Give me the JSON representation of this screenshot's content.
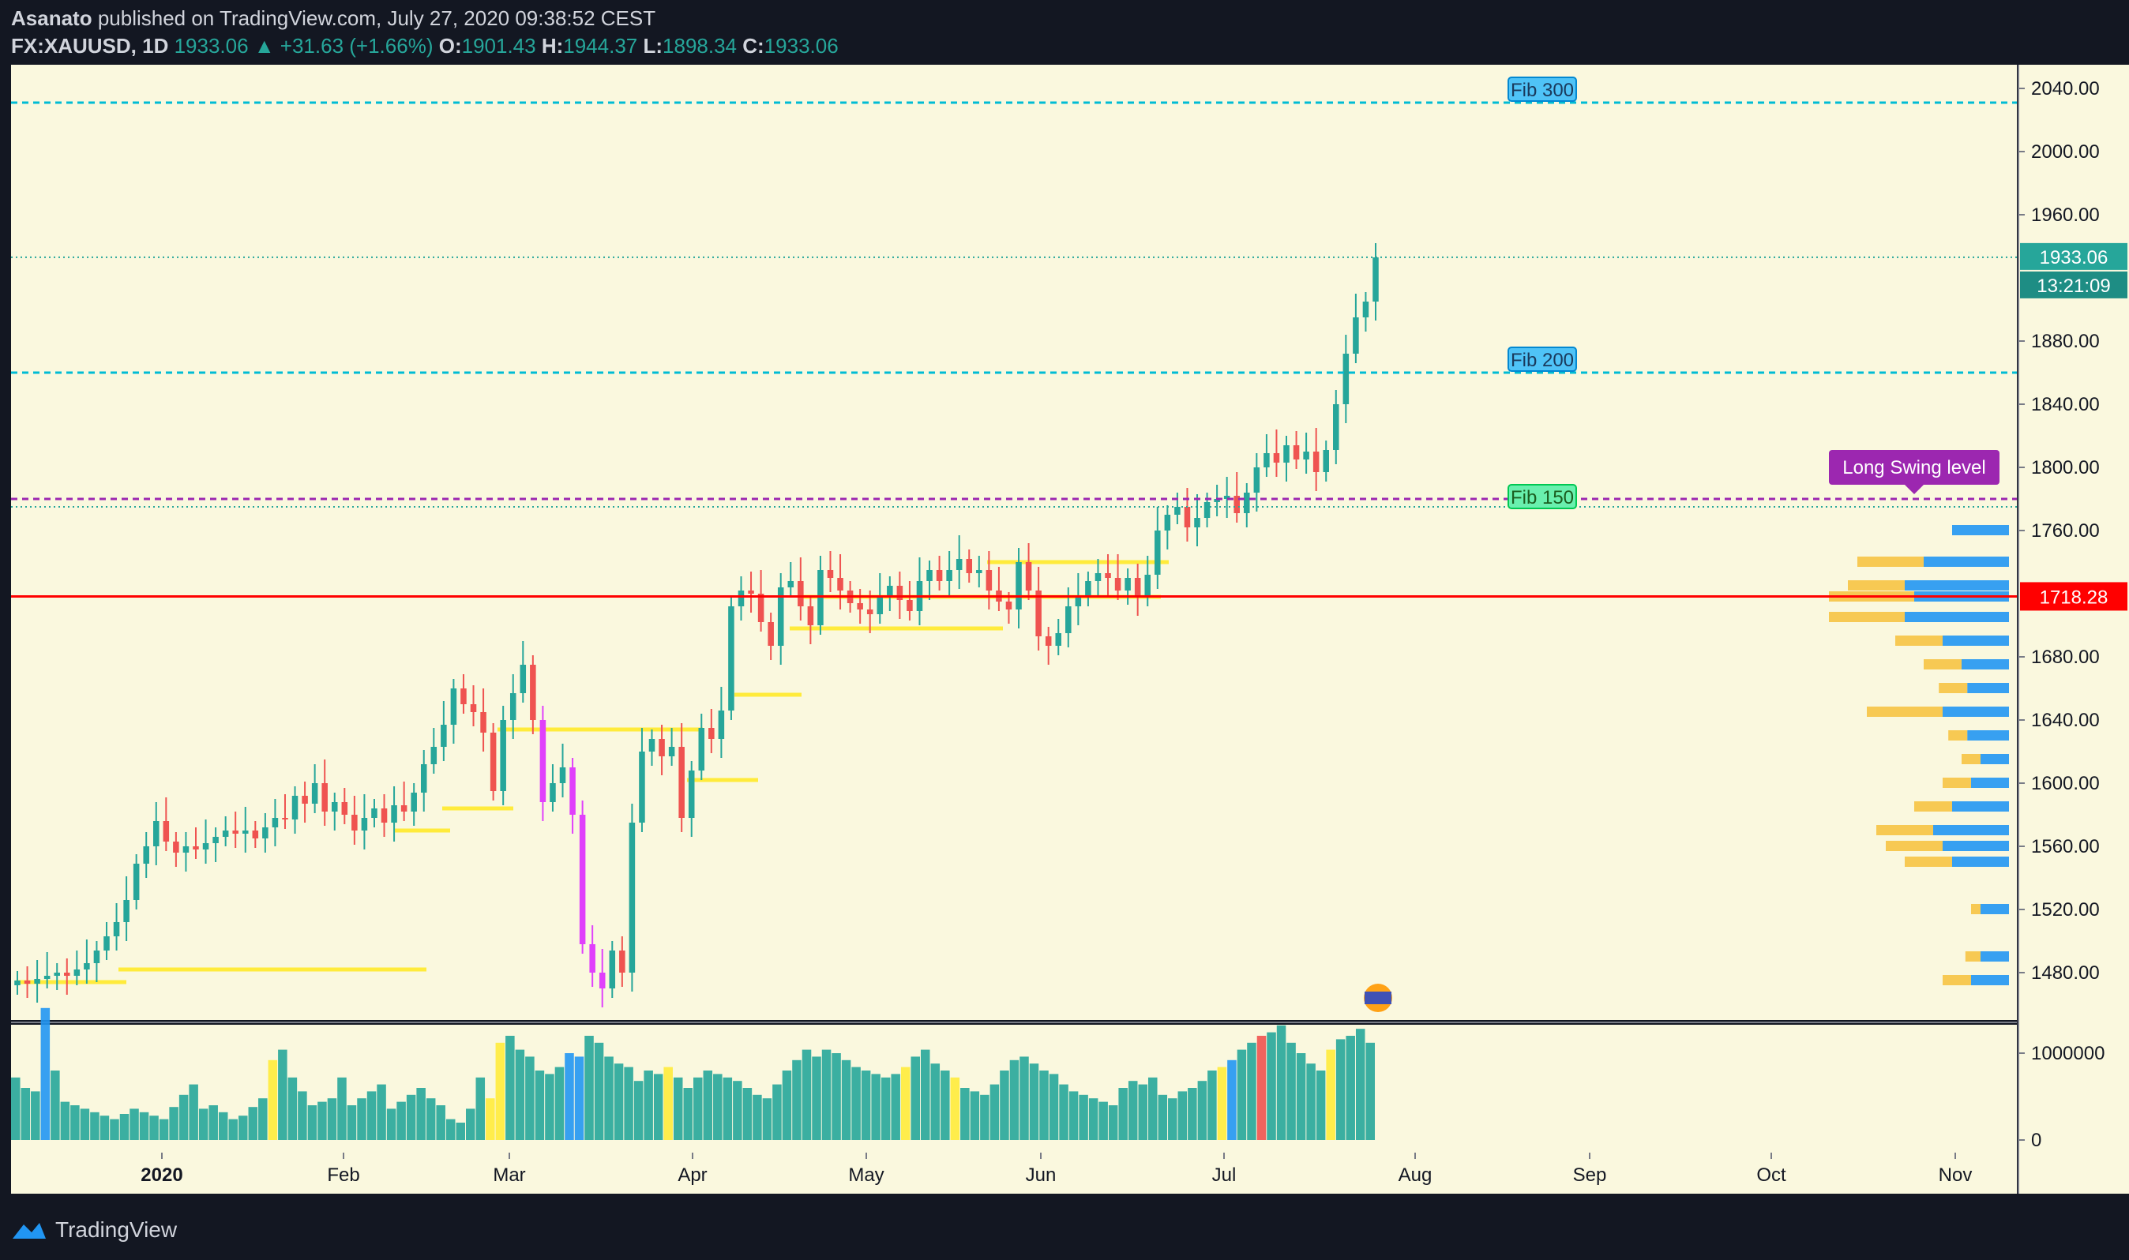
{
  "header": {
    "author": "Asanato",
    "published_text": "published on TradingView.com, July 27, 2020 09:38:52 CEST",
    "symbol": "FX:XAUUSD, 1D",
    "last": "1933.06",
    "change": "+31.63 (+1.66%)",
    "open_label": "O:",
    "open": "1901.43",
    "high_label": "H:",
    "high": "1944.37",
    "low_label": "L:",
    "low": "1898.34",
    "close_label": "C:",
    "close": "1933.06"
  },
  "footer": {
    "brand": "TradingView"
  },
  "colors": {
    "background": "#faf8de",
    "up": "#26a69a",
    "down": "#ef5350",
    "pink": "#e040fb",
    "fib_line": "#00bcd4",
    "swing_line": "#9c27b0",
    "support_red": "#ff0000",
    "yellow_level": "#ffeb3b",
    "volume_up": "#26a69a",
    "volume_highlight_yellow": "#ffeb3b",
    "volume_highlight_blue": "#2196f3",
    "volume_highlight_red": "#ef5350",
    "vp_blue": "#2196f3",
    "vp_yellow": "#f6c344"
  },
  "chart_data": {
    "type": "candlestick",
    "symbol": "FX:XAUUSD",
    "interval": "1D",
    "ylim": [
      1450,
      2055
    ],
    "price_ticks": [
      "2040.00",
      "2000.00",
      "1960.00",
      "1880.00",
      "1840.00",
      "1800.00",
      "1760.00",
      "1680.00",
      "1640.00",
      "1600.00",
      "1560.00",
      "1520.00",
      "1480.00"
    ],
    "price_tick_values": [
      2040,
      2000,
      1960,
      1880,
      1840,
      1800,
      1760,
      1680,
      1640,
      1600,
      1560,
      1520,
      1480
    ],
    "time_ticks": [
      "2020",
      "Feb",
      "Mar",
      "Apr",
      "May",
      "Jun",
      "Jul",
      "Aug",
      "Sep",
      "Oct",
      "Nov"
    ],
    "last_price_label": "1933.06",
    "countdown_label": "13:21:09",
    "support_label": "1718.28",
    "support_value": 1718.28,
    "levels": [
      {
        "label": "Fib 300",
        "value": 2031
      },
      {
        "label": "Fib 200",
        "value": 1860
      },
      {
        "label": "Fib 150",
        "value": 1775
      },
      {
        "label": "Long Swing level",
        "value": 1780
      }
    ],
    "candles_close": [
      1475,
      1473,
      1476,
      1478,
      1480,
      1478,
      1482,
      1486,
      1494,
      1503,
      1512,
      1526,
      1549,
      1560,
      1576,
      1563,
      1556,
      1560,
      1558,
      1562,
      1566,
      1570,
      1568,
      1570,
      1565,
      1572,
      1578,
      1577,
      1592,
      1587,
      1600,
      1582,
      1588,
      1580,
      1570,
      1578,
      1584,
      1575,
      1586,
      1582,
      1594,
      1612,
      1623,
      1637,
      1660,
      1650,
      1645,
      1632,
      1595,
      1640,
      1657,
      1675,
      1640,
      1588,
      1600,
      1610,
      1580,
      1498,
      1480,
      1470,
      1494,
      1480,
      1575,
      1620,
      1628,
      1617,
      1623,
      1578,
      1608,
      1635,
      1628,
      1646,
      1712,
      1722,
      1720,
      1702,
      1687,
      1724,
      1728,
      1712,
      1700,
      1735,
      1730,
      1722,
      1714,
      1710,
      1707,
      1718,
      1725,
      1716,
      1709,
      1728,
      1735,
      1728,
      1735,
      1742,
      1733,
      1735,
      1722,
      1715,
      1710,
      1740,
      1722,
      1693,
      1687,
      1695,
      1712,
      1718,
      1728,
      1733,
      1730,
      1722,
      1730,
      1718,
      1732,
      1760,
      1770,
      1775,
      1762,
      1768,
      1778,
      1780,
      1782,
      1771,
      1784,
      1800,
      1809,
      1803,
      1814,
      1805,
      1810,
      1797,
      1811,
      1840,
      1872,
      1895,
      1905,
      1933
    ],
    "volume_ticks": [
      "1000000",
      "0"
    ],
    "volume_tick_values": [
      1000000,
      0
    ],
    "volume_max": 1200000,
    "volume": [
      180,
      150,
      140,
      380,
      200,
      110,
      100,
      90,
      80,
      70,
      60,
      75,
      90,
      80,
      70,
      60,
      95,
      130,
      160,
      90,
      100,
      80,
      60,
      70,
      95,
      120,
      230,
      260,
      180,
      140,
      100,
      110,
      120,
      180,
      100,
      120,
      140,
      160,
      90,
      110,
      130,
      150,
      120,
      100,
      60,
      50,
      90,
      180,
      120,
      280,
      300,
      260,
      240,
      200,
      190,
      210,
      250,
      240,
      300,
      280,
      240,
      220,
      210,
      170,
      200,
      190,
      210,
      180,
      150,
      180,
      200,
      190,
      180,
      170,
      150,
      130,
      120,
      160,
      200,
      230,
      260,
      240,
      260,
      250,
      230,
      210,
      200,
      190,
      180,
      190,
      210,
      240,
      260,
      220,
      200,
      180,
      150,
      140,
      130,
      160,
      200,
      230,
      240,
      220,
      200,
      190,
      160,
      140,
      130,
      120,
      110,
      100,
      150,
      170,
      160,
      180,
      130,
      120,
      140,
      150,
      170,
      200,
      210,
      230,
      260,
      280,
      300,
      310,
      330,
      280,
      250,
      220,
      200,
      260,
      290,
      300,
      320,
      280
    ],
    "volume_colors_note": "",
    "volume_profile": [
      {
        "price": 1760,
        "blue": 0.3,
        "yellow": 0
      },
      {
        "price": 1740,
        "blue": 0.45,
        "yellow": 0.35
      },
      {
        "price": 1725,
        "blue": 0.55,
        "yellow": 0.3
      },
      {
        "price": 1718,
        "blue": 0.5,
        "yellow": 0.45
      },
      {
        "price": 1705,
        "blue": 0.55,
        "yellow": 0.4
      },
      {
        "price": 1690,
        "blue": 0.35,
        "yellow": 0.25
      },
      {
        "price": 1675,
        "blue": 0.25,
        "yellow": 0.2
      },
      {
        "price": 1660,
        "blue": 0.22,
        "yellow": 0.15
      },
      {
        "price": 1645,
        "blue": 0.35,
        "yellow": 0.4
      },
      {
        "price": 1630,
        "blue": 0.22,
        "yellow": 0.1
      },
      {
        "price": 1615,
        "blue": 0.15,
        "yellow": 0.1
      },
      {
        "price": 1600,
        "blue": 0.2,
        "yellow": 0.15
      },
      {
        "price": 1585,
        "blue": 0.3,
        "yellow": 0.2
      },
      {
        "price": 1570,
        "blue": 0.4,
        "yellow": 0.3
      },
      {
        "price": 1560,
        "blue": 0.35,
        "yellow": 0.3
      },
      {
        "price": 1550,
        "blue": 0.3,
        "yellow": 0.25
      },
      {
        "price": 1520,
        "blue": 0.15,
        "yellow": 0.05
      },
      {
        "price": 1490,
        "blue": 0.15,
        "yellow": 0.08
      },
      {
        "price": 1475,
        "blue": 0.2,
        "yellow": 0.15
      }
    ]
  }
}
